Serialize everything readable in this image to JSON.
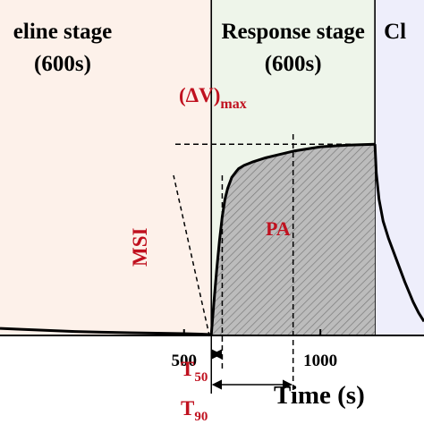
{
  "chart_data": {
    "type": "line",
    "xlabel": "Time (s)",
    "ylabel": "",
    "xlim": [
      -175,
      1380
    ],
    "ylim": [
      0,
      1
    ],
    "x_ticks": [
      500,
      1000
    ],
    "stages": [
      {
        "name": "Baseline stage",
        "label": "eline stage",
        "duration": "(600s)",
        "x_start": -175,
        "x_end": 600,
        "color": "#fdf1ea"
      },
      {
        "name": "Response stage",
        "label": "Response stage",
        "duration": "(600s)",
        "x_start": 600,
        "x_end": 1200,
        "color": "#eef5ea"
      },
      {
        "name": "Cleaning stage",
        "label": "Cl",
        "duration": "",
        "x_start": 1200,
        "x_end": 1380,
        "color": "#eeeefb"
      }
    ],
    "series": [
      {
        "x": [
          -175,
          -100,
          0,
          100,
          200,
          300,
          400,
          500,
          560,
          600
        ],
        "y": [
          0.028,
          0.024,
          0.019,
          0.014,
          0.011,
          0.008,
          0.006,
          0.004,
          0.002,
          0.0
        ]
      },
      {
        "x": [
          600,
          610,
          620,
          630,
          640,
          650,
          660,
          675,
          690,
          700,
          720,
          750,
          800,
          850,
          900,
          1000,
          1100,
          1200
        ],
        "y": [
          0.0,
          0.155,
          0.3,
          0.43,
          0.54,
          0.62,
          0.67,
          0.72,
          0.745,
          0.76,
          0.775,
          0.79,
          0.81,
          0.825,
          0.84,
          0.86,
          0.868,
          0.872
        ]
      },
      {
        "x": [
          1200,
          1205,
          1215,
          1230,
          1250,
          1280,
          1310,
          1340,
          1360,
          1380
        ],
        "y": [
          0.872,
          0.74,
          0.62,
          0.52,
          0.44,
          0.34,
          0.24,
          0.15,
          0.1,
          0.06
        ]
      }
    ],
    "annotations": {
      "delta_v": "(ΔV)",
      "delta_v_sub": "max",
      "pa": "PA",
      "msi": "MSI",
      "t50": "T",
      "t50_sub": "50",
      "t90": "T",
      "t90_sub": "90",
      "t50_x": 640,
      "t90_x": 900,
      "max_y": 0.872
    },
    "colors": {
      "curve": "#000000",
      "annotation": "#c0111f",
      "pa_fill": "#bcbcbc",
      "hatch": "#7a7a7a"
    }
  }
}
